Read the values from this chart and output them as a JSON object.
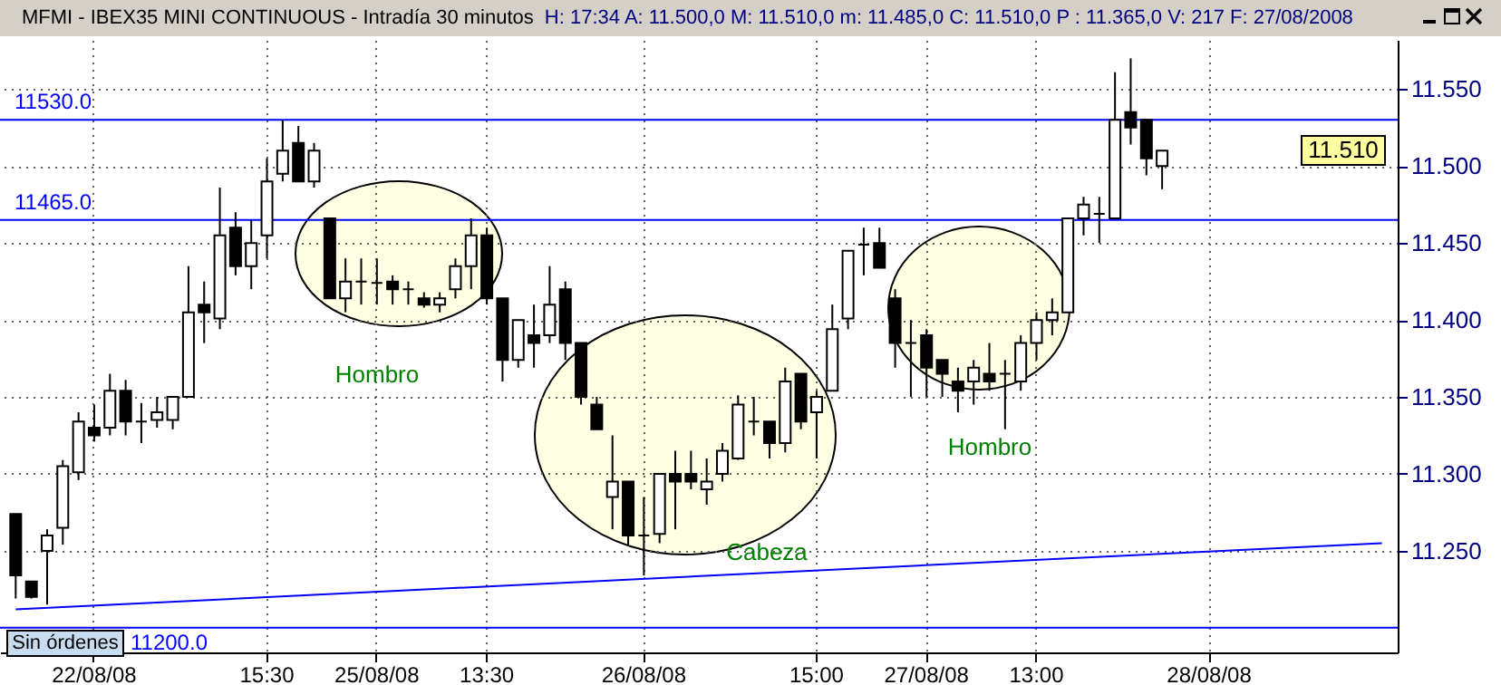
{
  "chart_data": {
    "type": "candlestick",
    "title": "MFMI - IBEX35 MINI CONTINUOUS - Intradía 30 minutos",
    "subtitle": "H: 17:34  A: 11.500,0  M: 11.510,0  m: 11.485,0  C: 11.510,0  P : 11.365,0  V: 217  F: 27/08/2008",
    "categories": [
      null,
      null,
      null,
      null,
      null,
      "22/08/08",
      null,
      null,
      null,
      null,
      null,
      null,
      null,
      null,
      null,
      null,
      "15:30",
      null,
      null,
      null,
      null,
      null,
      null,
      "25/08/08",
      null,
      null,
      null,
      null,
      null,
      null,
      "13:30",
      null,
      null,
      null,
      null,
      null,
      null,
      null,
      null,
      null,
      "26/08/08",
      null,
      null,
      null,
      null,
      null,
      null,
      null,
      null,
      null,
      null,
      "15:00",
      null,
      null,
      null,
      null,
      null,
      null,
      "27/08/08",
      null,
      null,
      null,
      null,
      null,
      null,
      "13:00",
      null,
      null,
      null,
      null,
      null,
      null,
      null,
      null,
      null,
      null,
      "28/08/08",
      null,
      null,
      null,
      null,
      null,
      null,
      null,
      null,
      null,
      null,
      null
    ],
    "ohlc": [
      [
        11.274,
        11.274,
        11.219,
        11.234
      ],
      [
        11.23,
        11.23,
        11.219,
        11.22
      ],
      [
        11.25,
        11.264,
        11.215,
        11.26
      ],
      [
        11.265,
        11.309,
        11.254,
        11.305
      ],
      [
        11.301,
        11.34,
        11.296,
        11.334
      ],
      [
        11.33,
        11.345,
        11.321,
        11.325
      ],
      [
        11.33,
        11.365,
        11.325,
        11.354
      ],
      [
        11.354,
        11.361,
        11.325,
        11.334
      ],
      [
        11.334,
        11.346,
        11.32,
        11.334
      ],
      [
        11.335,
        11.35,
        11.33,
        11.34
      ],
      [
        11.335,
        11.35,
        11.329,
        11.35
      ],
      [
        11.35,
        11.435,
        11.35,
        11.405
      ],
      [
        11.41,
        11.425,
        11.385,
        11.405
      ],
      [
        11.401,
        11.486,
        11.394,
        11.455
      ],
      [
        11.46,
        11.47,
        11.429,
        11.435
      ],
      [
        11.435,
        11.465,
        11.42,
        11.45
      ],
      [
        11.455,
        11.505,
        11.44,
        11.49
      ],
      [
        11.495,
        11.53,
        11.49,
        11.51
      ],
      [
        11.515,
        11.526,
        11.49,
        11.49
      ],
      [
        11.49,
        11.515,
        11.486,
        11.51
      ],
      [
        11.466,
        11.466,
        11.414,
        11.414
      ],
      [
        11.414,
        11.44,
        11.405,
        11.425
      ],
      [
        11.425,
        11.44,
        11.41,
        11.425
      ],
      [
        11.424,
        11.44,
        11.41,
        11.424
      ],
      [
        11.425,
        11.429,
        11.41,
        11.42
      ],
      [
        11.42,
        11.425,
        11.41,
        11.42
      ],
      [
        11.414,
        11.418,
        11.408,
        11.41
      ],
      [
        11.41,
        11.418,
        11.405,
        11.414
      ],
      [
        11.42,
        11.44,
        11.414,
        11.435
      ],
      [
        11.435,
        11.466,
        11.42,
        11.455
      ],
      [
        11.455,
        11.46,
        11.41,
        11.414
      ],
      [
        11.414,
        11.414,
        11.36,
        11.374
      ],
      [
        11.374,
        11.4,
        11.369,
        11.4
      ],
      [
        11.39,
        11.41,
        11.369,
        11.385
      ],
      [
        11.39,
        11.435,
        11.385,
        11.41
      ],
      [
        11.42,
        11.425,
        11.374,
        11.385
      ],
      [
        11.385,
        11.385,
        11.345,
        11.35
      ],
      [
        11.345,
        11.35,
        11.329,
        11.329
      ],
      [
        11.285,
        11.325,
        11.264,
        11.295
      ],
      [
        11.295,
        11.295,
        11.254,
        11.26
      ],
      [
        11.26,
        11.285,
        11.234,
        11.26
      ],
      [
        11.261,
        11.3,
        11.255,
        11.3
      ],
      [
        11.3,
        11.315,
        11.264,
        11.295
      ],
      [
        11.3,
        11.315,
        11.29,
        11.295
      ],
      [
        11.29,
        11.31,
        11.28,
        11.295
      ],
      [
        11.3,
        11.32,
        11.295,
        11.315
      ],
      [
        11.31,
        11.351,
        11.309,
        11.345
      ],
      [
        11.334,
        11.35,
        11.325,
        11.334
      ],
      [
        11.334,
        11.334,
        11.31,
        11.32
      ],
      [
        11.32,
        11.369,
        11.314,
        11.36
      ],
      [
        11.365,
        11.365,
        11.329,
        11.334
      ],
      [
        11.34,
        11.354,
        11.31,
        11.35
      ],
      [
        11.354,
        11.41,
        11.354,
        11.394
      ],
      [
        11.401,
        11.445,
        11.394,
        11.445
      ],
      [
        11.449,
        11.46,
        11.429,
        11.449
      ],
      [
        11.45,
        11.46,
        11.434,
        11.434
      ],
      [
        11.414,
        11.42,
        11.369,
        11.385
      ],
      [
        11.385,
        11.4,
        11.35,
        11.385
      ],
      [
        11.39,
        11.394,
        11.35,
        11.369
      ],
      [
        11.374,
        11.374,
        11.35,
        11.365
      ],
      [
        11.36,
        11.369,
        11.34,
        11.354
      ],
      [
        11.36,
        11.374,
        11.345,
        11.369
      ],
      [
        11.365,
        11.385,
        11.354,
        11.36
      ],
      [
        11.365,
        11.374,
        11.329,
        11.365
      ],
      [
        11.36,
        11.39,
        11.354,
        11.385
      ],
      [
        11.385,
        11.405,
        11.374,
        11.4
      ],
      [
        11.4,
        11.414,
        11.39,
        11.405
      ],
      [
        11.405,
        11.466,
        11.405,
        11.466
      ],
      [
        11.466,
        11.48,
        11.455,
        11.475
      ],
      [
        11.469,
        11.48,
        11.45,
        11.469
      ],
      [
        11.466,
        11.561,
        11.466,
        11.53
      ],
      [
        11.535,
        11.57,
        11.514,
        11.525
      ],
      [
        11.53,
        11.53,
        11.494,
        11.505
      ],
      [
        11.5,
        11.51,
        11.485,
        11.51
      ],
      null,
      null,
      null,
      null,
      null,
      null,
      null,
      null,
      null,
      null,
      null,
      null,
      null,
      null
    ],
    "series": [
      {
        "type": "line",
        "color": "#0000ff",
        "values": [
          11.212,
          null,
          null,
          null,
          null,
          null,
          null,
          null,
          null,
          null,
          null,
          null,
          null,
          null,
          null,
          null,
          null,
          null,
          null,
          null,
          null,
          null,
          null,
          null,
          null,
          null,
          null,
          null,
          null,
          null,
          null,
          null,
          null,
          null,
          null,
          null,
          null,
          null,
          null,
          null,
          null,
          null,
          null,
          null,
          null,
          null,
          null,
          null,
          null,
          null,
          null,
          null,
          null,
          null,
          null,
          null,
          null,
          null,
          null,
          null,
          null,
          null,
          null,
          null,
          null,
          null,
          null,
          null,
          null,
          null,
          null,
          null,
          null,
          null,
          null,
          null,
          null,
          null,
          null,
          null,
          null,
          null,
          null,
          null,
          null,
          null,
          null,
          11.255
        ]
      }
    ],
    "ylim": [
      11.184,
      11.582
    ],
    "yticks": [
      {
        "value": 11.25,
        "label": "11.250"
      },
      {
        "value": 11.3,
        "label": "11.300"
      },
      {
        "value": 11.35,
        "label": "11.350"
      },
      {
        "value": 11.4,
        "label": "11.400"
      },
      {
        "value": 11.45,
        "label": "11.450"
      },
      {
        "value": 11.5,
        "label": "11.500"
      },
      {
        "value": 11.55,
        "label": "11.550"
      }
    ],
    "ref_lines": [
      {
        "axis": "y",
        "value": 11.53,
        "label": "11530.0",
        "color": "#0000ff"
      },
      {
        "axis": "y",
        "value": 11.465,
        "label": "11465.0",
        "color": "#0000ff"
      },
      {
        "axis": "y",
        "value": 11.2,
        "label": "11200.0",
        "color": "#0000ff"
      }
    ],
    "annotations": [
      "Hombro",
      "Cabeza",
      "Hombro",
      "Sin órdenes",
      "11.510"
    ],
    "grid": true
  }
}
